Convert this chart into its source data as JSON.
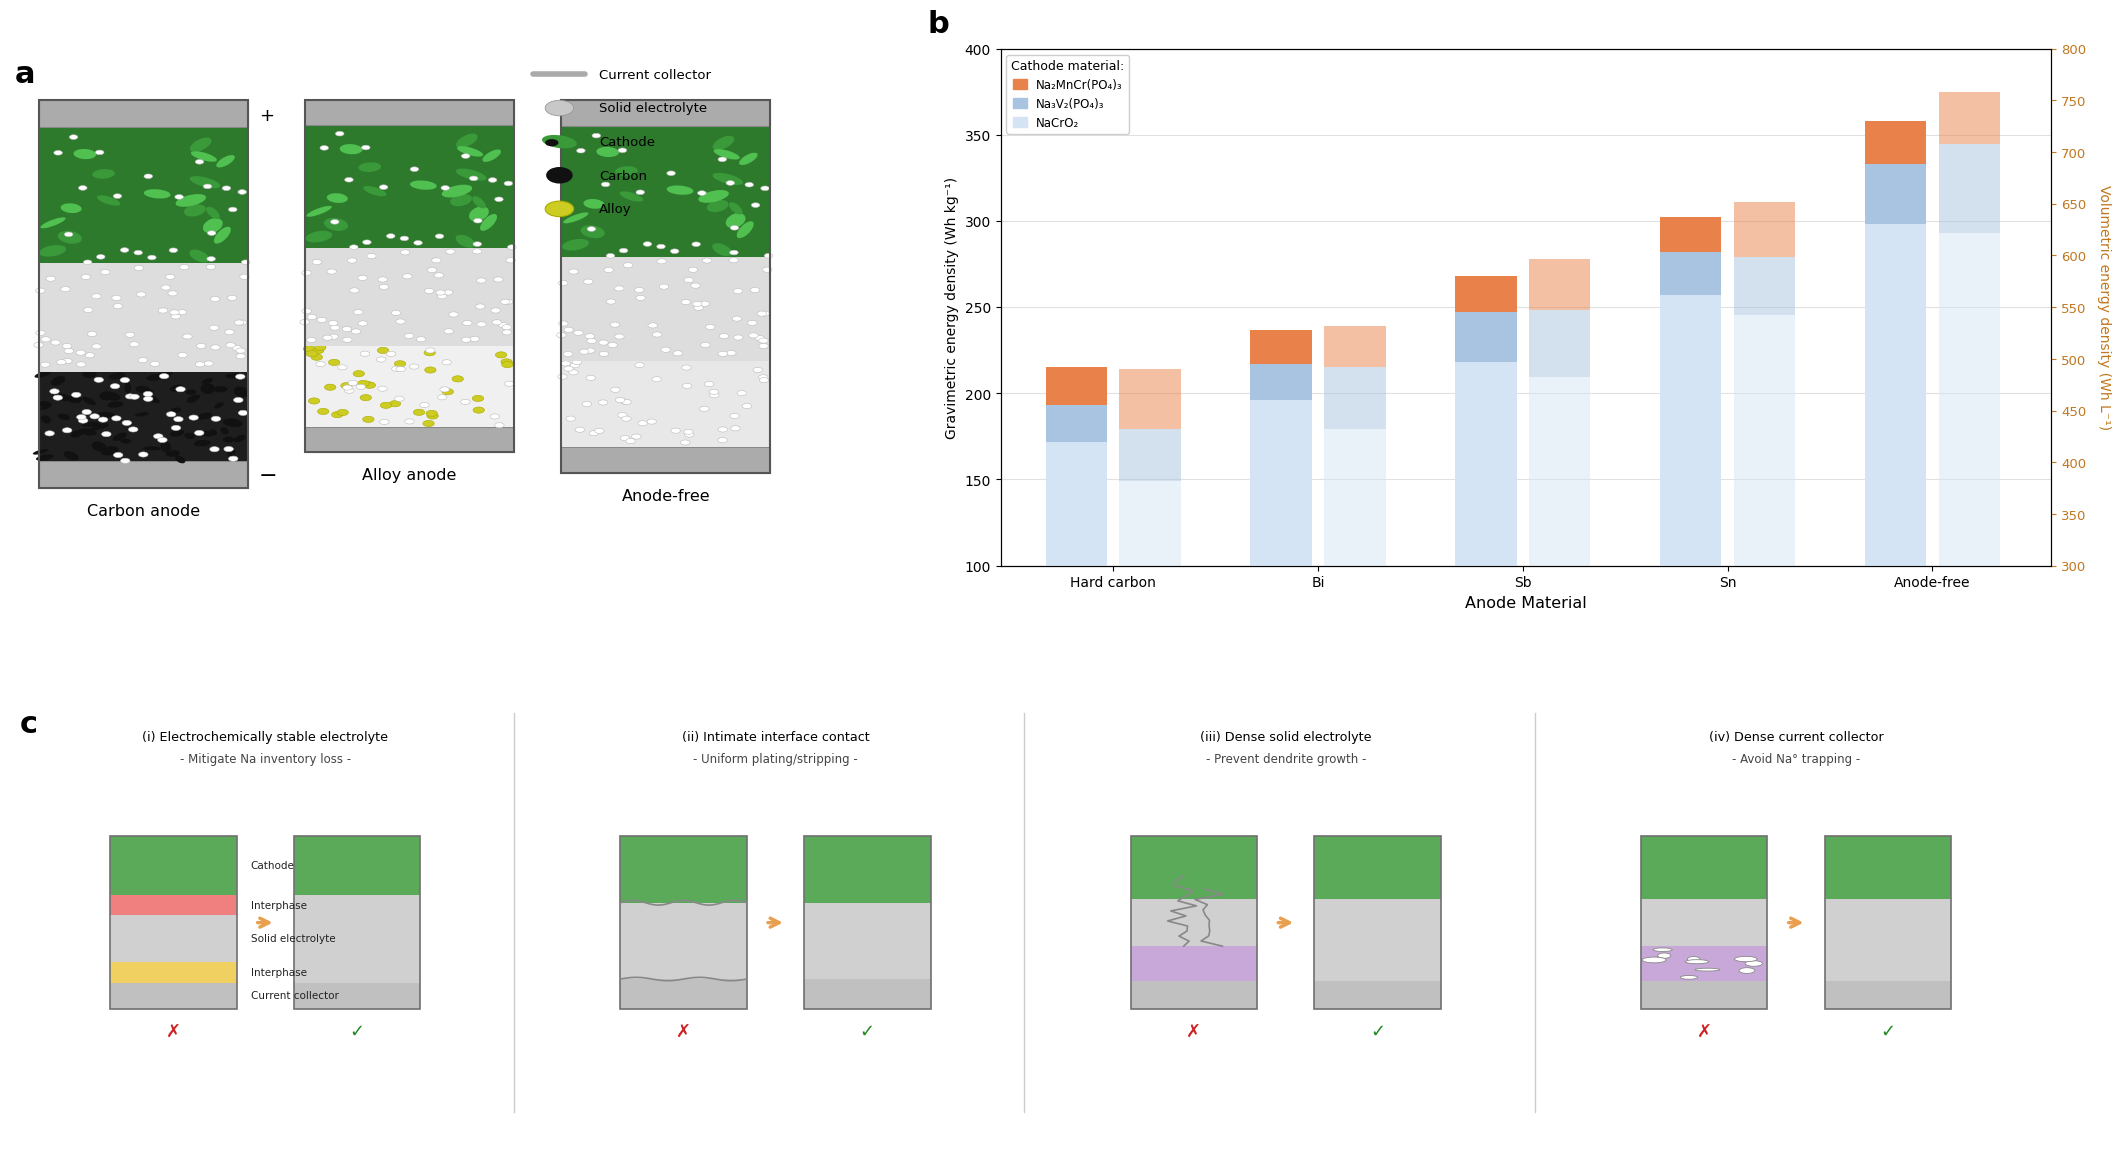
{
  "fig_width": 21.6,
  "fig_height": 11.6,
  "bg_color": "#ffffff",
  "panel_labels": [
    "a",
    "b",
    "c"
  ],
  "anode_labels": [
    "Carbon anode",
    "Alloy anode",
    "Anode-free"
  ],
  "legend_items": [
    "Current collector",
    "Solid electrolyte",
    "Cathode",
    "Carbon",
    "Alloy"
  ],
  "bar_categories": [
    "Hard carbon",
    "Bi",
    "Sb",
    "Sn",
    "Anode-free"
  ],
  "bar_xlabel": "Anode Material",
  "bar_ylabel_left": "Gravimetric energy density (Wh kg⁻¹)",
  "bar_ylabel_right": "Volumetric energy density (Wh L⁻¹)",
  "ylim_left": [
    100,
    400
  ],
  "ylim_right": [
    300,
    800
  ],
  "yticks_left": [
    100,
    150,
    200,
    250,
    300,
    350,
    400
  ],
  "yticks_right": [
    300,
    350,
    400,
    450,
    500,
    550,
    600,
    650,
    700,
    750,
    800
  ],
  "cathode_legend_labels": [
    "Na₂MnCr(PO₄)₃",
    "Na₃V₂(PO₄)₃",
    "NaCrO₂"
  ],
  "legend_title": "Cathode material:",
  "grav_nmn": [
    215,
    237,
    268,
    302,
    358
  ],
  "grav_nv": [
    193,
    217,
    247,
    282,
    333
  ],
  "grav_nacr": [
    172,
    196,
    218,
    257,
    298
  ],
  "vol_nmn": [
    490,
    532,
    597,
    652,
    758
  ],
  "vol_nv": [
    432,
    492,
    547,
    598,
    708
  ],
  "vol_nacr": [
    382,
    432,
    482,
    542,
    622
  ],
  "c_grav_nmn": "#e8824a",
  "c_grav_nv": "#a8c4e0",
  "c_grav_nacr": "#d4e4f5",
  "c_vol_alpha": 0.5,
  "section_c_titles": [
    "(i) Electrochemically stable electrolyte",
    "(ii) Intimate interface contact",
    "(iii) Dense solid electrolyte",
    "(iv) Dense current collector"
  ],
  "section_c_subtitles": [
    "- Mitigate Na inventory loss -",
    "- Uniform plating/stripping -",
    "- Prevent dendrite growth -",
    "- Avoid Na° trapping -"
  ],
  "lc_cathode": "#5aaa5a",
  "lc_interphase_red": "#f08080",
  "lc_solid_elec": "#d0d0d0",
  "lc_interphase_yel": "#f0d060",
  "lc_cc": "#c0c0c0",
  "lc_na_metal": "#c8a8d8",
  "lc_na_metal2": "#b898c8",
  "arrow_color": "#e8a050",
  "bad_color": "#cc2222",
  "good_color": "#228822",
  "side_labels_1": [
    "Cathode",
    "Interphase",
    "Solid electrolyte",
    "Interphase",
    "Current collector"
  ]
}
